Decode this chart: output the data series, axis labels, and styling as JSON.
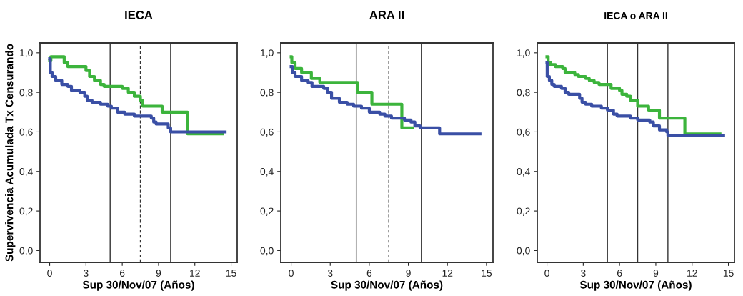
{
  "chart_data": [
    {
      "type": "step",
      "title": "IECA",
      "xlabel": "Sup 30/Nov/07 (Años)",
      "ylabel": "Supervivencia Acumulada Tx Censurando",
      "xlim": [
        -0.8,
        15.5
      ],
      "ylim": [
        -0.06,
        1.05
      ],
      "xticks": [
        0,
        3,
        6,
        9,
        12,
        15
      ],
      "yticks": [
        {
          "value": 0,
          "label": "0,0"
        },
        {
          "value": 0.2,
          "label": "0,2"
        },
        {
          "value": 0.4,
          "label": "0,4"
        },
        {
          "value": 0.6,
          "label": "0,6"
        },
        {
          "value": 0.8,
          "label": "0,8"
        },
        {
          "value": 1.0,
          "label": "1,0"
        }
      ],
      "grid": false,
      "legend": false,
      "tick_labels": "xy",
      "ref_lines": [
        {
          "axis": "x",
          "value": 5,
          "label": null,
          "line_style": "solid"
        },
        {
          "axis": "x",
          "value": 7.5,
          "label": null,
          "line_style": "dashed"
        },
        {
          "axis": "x",
          "value": 10,
          "label": null,
          "line_style": "solid"
        }
      ],
      "series": [
        {
          "color": "#3cb43c",
          "x": [
            0,
            0.1,
            1.2,
            1.5,
            3.0,
            3.3,
            3.7,
            4.2,
            4.5,
            6.0,
            6.5,
            7.0,
            7.5,
            7.7,
            9.3,
            11.4,
            14.3
          ],
          "values": [
            0.96,
            0.98,
            0.95,
            0.93,
            0.91,
            0.88,
            0.86,
            0.84,
            0.83,
            0.82,
            0.8,
            0.78,
            0.76,
            0.73,
            0.7,
            0.59,
            0.59
          ]
        },
        {
          "color": "#3a4fa5",
          "x": [
            0,
            0.05,
            0.2,
            0.5,
            1.0,
            1.5,
            1.8,
            2.5,
            2.9,
            3.1,
            3.5,
            4.2,
            4.8,
            5.1,
            5.6,
            6.2,
            7.0,
            8.4,
            8.6,
            8.8,
            9.8,
            10.0,
            14.5
          ],
          "values": [
            0.97,
            0.9,
            0.88,
            0.86,
            0.84,
            0.83,
            0.81,
            0.8,
            0.78,
            0.76,
            0.75,
            0.74,
            0.73,
            0.72,
            0.7,
            0.69,
            0.68,
            0.67,
            0.65,
            0.64,
            0.62,
            0.6,
            0.6
          ]
        }
      ]
    },
    {
      "type": "step",
      "title": "ARA II",
      "xlabel": "Sup 30/Nov/07 (Años)",
      "xlim": [
        -0.8,
        15.5
      ],
      "ylim": [
        -0.06,
        1.05
      ],
      "xticks": [
        0,
        3,
        6,
        9,
        12,
        15
      ],
      "yticks": [
        {
          "value": 0,
          "label": "0,0"
        },
        {
          "value": 0.2,
          "label": "0,2"
        },
        {
          "value": 0.4,
          "label": "0,4"
        },
        {
          "value": 0.6,
          "label": "0,6"
        },
        {
          "value": 0.8,
          "label": "0,8"
        },
        {
          "value": 1.0,
          "label": "1,0"
        }
      ],
      "grid": false,
      "legend": false,
      "ref_lines": [
        {
          "axis": "x",
          "value": 5,
          "label": null,
          "line_style": "solid"
        },
        {
          "axis": "x",
          "value": 7.5,
          "label": null,
          "line_style": "dashed"
        },
        {
          "axis": "x",
          "value": 10,
          "label": null,
          "line_style": "solid"
        }
      ],
      "series": [
        {
          "color": "#3cb43c",
          "x": [
            0,
            0.05,
            0.3,
            0.8,
            1.55,
            2.2,
            5.1,
            6.2,
            8.5,
            9.3
          ],
          "values": [
            0.98,
            0.95,
            0.92,
            0.9,
            0.87,
            0.85,
            0.8,
            0.74,
            0.62,
            0.62
          ]
        },
        {
          "color": "#3a4fa5",
          "x": [
            0,
            0.1,
            0.3,
            0.8,
            1.3,
            1.6,
            2.5,
            2.8,
            3.1,
            3.7,
            4.3,
            4.8,
            5.4,
            6.0,
            6.8,
            7.2,
            7.7,
            8.7,
            9.2,
            9.5,
            9.9,
            11.4,
            14.5
          ],
          "values": [
            0.93,
            0.9,
            0.88,
            0.86,
            0.85,
            0.83,
            0.82,
            0.8,
            0.77,
            0.75,
            0.74,
            0.73,
            0.72,
            0.7,
            0.69,
            0.68,
            0.67,
            0.66,
            0.65,
            0.63,
            0.62,
            0.59,
            0.59
          ]
        }
      ]
    },
    {
      "type": "step",
      "title": "IECA o ARA II",
      "xlabel": "Sup 30/Nov/07 (Años)",
      "xlim": [
        -0.8,
        15.5
      ],
      "ylim": [
        -0.06,
        1.05
      ],
      "xticks": [
        0,
        3,
        6,
        9,
        12,
        15
      ],
      "yticks": [
        {
          "value": 0,
          "label": "0,0"
        },
        {
          "value": 0.2,
          "label": "0,2"
        },
        {
          "value": 0.4,
          "label": "0,4"
        },
        {
          "value": 0.6,
          "label": "0,6"
        },
        {
          "value": 0.8,
          "label": "0,8"
        },
        {
          "value": 1.0,
          "label": "1,0"
        }
      ],
      "grid": false,
      "legend": false,
      "ref_lines": [
        {
          "axis": "x",
          "value": 5,
          "label": null,
          "line_style": "solid"
        },
        {
          "axis": "x",
          "value": 7.5,
          "label": null,
          "line_style": "solid"
        },
        {
          "axis": "x",
          "value": 10,
          "label": null,
          "line_style": "solid"
        }
      ],
      "series": [
        {
          "color": "#3cb43c",
          "x": [
            0,
            0.1,
            0.3,
            0.7,
            1.3,
            1.5,
            2.3,
            2.6,
            3.2,
            3.5,
            3.9,
            4.3,
            5.3,
            6.0,
            6.2,
            6.6,
            6.9,
            7.5,
            8.4,
            9.3,
            11.4,
            14.3
          ],
          "values": [
            0.98,
            0.95,
            0.94,
            0.93,
            0.92,
            0.9,
            0.89,
            0.88,
            0.87,
            0.86,
            0.85,
            0.84,
            0.82,
            0.81,
            0.79,
            0.78,
            0.76,
            0.73,
            0.71,
            0.67,
            0.59,
            0.59
          ]
        },
        {
          "color": "#3a4fa5",
          "x": [
            0,
            0.02,
            0.2,
            0.4,
            0.6,
            1.2,
            1.5,
            1.8,
            2.7,
            2.9,
            3.2,
            3.7,
            4.5,
            5.0,
            5.5,
            5.8,
            6.9,
            7.5,
            8.5,
            8.8,
            9.3,
            9.9,
            10.0,
            14.6
          ],
          "values": [
            0.95,
            0.88,
            0.86,
            0.84,
            0.83,
            0.82,
            0.8,
            0.79,
            0.77,
            0.75,
            0.74,
            0.73,
            0.72,
            0.71,
            0.69,
            0.68,
            0.67,
            0.66,
            0.65,
            0.63,
            0.61,
            0.6,
            0.58,
            0.58
          ]
        }
      ]
    }
  ]
}
